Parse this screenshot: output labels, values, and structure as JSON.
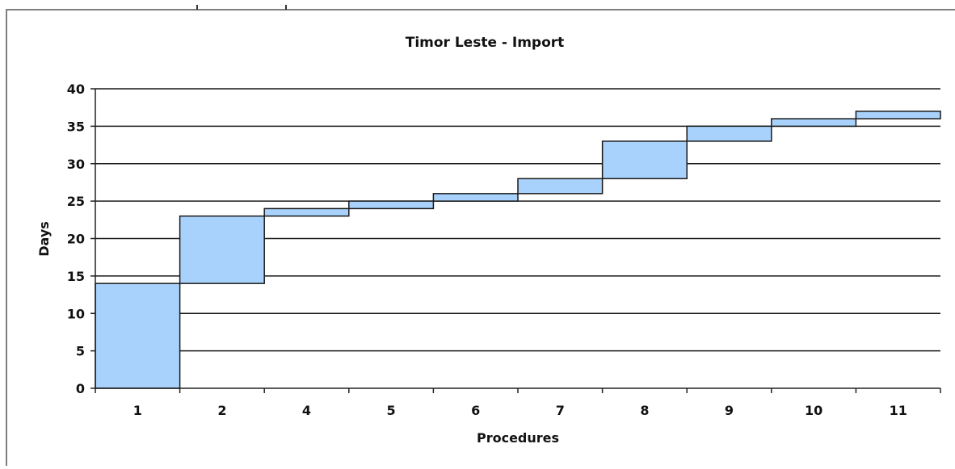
{
  "chart_data": {
    "type": "bar",
    "title": "Timor Leste - Import",
    "xlabel": "Procedures",
    "ylabel": "Days",
    "ylim": [
      0,
      40
    ],
    "yticks": [
      0,
      5,
      10,
      15,
      20,
      25,
      30,
      35,
      40
    ],
    "grid": true,
    "categories": [
      "1",
      "2",
      "4",
      "5",
      "6",
      "7",
      "8",
      "9",
      "10",
      "11"
    ],
    "series": [
      {
        "start": [
          0,
          14,
          23,
          24,
          25,
          26,
          28,
          33,
          35,
          36
        ],
        "end": [
          14,
          23,
          24,
          25,
          26,
          28,
          33,
          35,
          36,
          37
        ]
      }
    ],
    "colors": {
      "bar_fill": "#a8d2fc",
      "bar_stroke": "#1a1a1a",
      "grid": "#1a1a1a",
      "frame": "#7f7f7f"
    }
  }
}
